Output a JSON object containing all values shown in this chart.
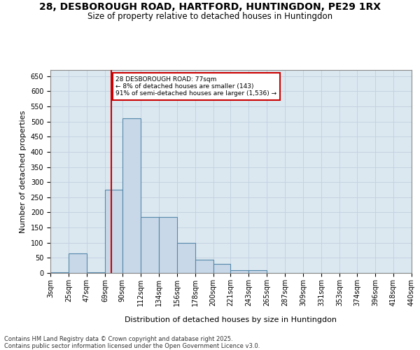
{
  "title_line1": "28, DESBOROUGH ROAD, HARTFORD, HUNTINGDON, PE29 1RX",
  "title_line2": "Size of property relative to detached houses in Huntingdon",
  "xlabel": "Distribution of detached houses by size in Huntingdon",
  "ylabel": "Number of detached properties",
  "bar_color": "#c8d8e8",
  "bar_edge_color": "#5588aa",
  "grid_color": "#c0d0e0",
  "background_color": "#dce8f0",
  "vline_color": "#cc0000",
  "vline_x": 77,
  "annotation_text": "28 DESBOROUGH ROAD: 77sqm\n← 8% of detached houses are smaller (143)\n91% of semi-detached houses are larger (1,536) →",
  "annotation_box_color": "#cc0000",
  "bins": [
    3,
    25,
    47,
    69,
    90,
    112,
    134,
    156,
    178,
    200,
    221,
    243,
    265,
    287,
    309,
    331,
    353,
    374,
    396,
    418,
    440
  ],
  "bin_labels": [
    "3sqm",
    "25sqm",
    "47sqm",
    "69sqm",
    "90sqm",
    "112sqm",
    "134sqm",
    "156sqm",
    "178sqm",
    "200sqm",
    "221sqm",
    "243sqm",
    "265sqm",
    "287sqm",
    "309sqm",
    "331sqm",
    "353sqm",
    "374sqm",
    "396sqm",
    "418sqm",
    "440sqm"
  ],
  "counts": [
    3,
    65,
    3,
    275,
    510,
    185,
    185,
    100,
    45,
    30,
    10,
    10,
    0,
    0,
    0,
    0,
    0,
    0,
    0,
    0
  ],
  "ylim": [
    0,
    670
  ],
  "yticks": [
    0,
    50,
    100,
    150,
    200,
    250,
    300,
    350,
    400,
    450,
    500,
    550,
    600,
    650
  ],
  "footnote": "Contains HM Land Registry data © Crown copyright and database right 2025.\nContains public sector information licensed under the Open Government Licence v3.0.",
  "title_fontsize": 10,
  "subtitle_fontsize": 8.5,
  "label_fontsize": 8,
  "tick_fontsize": 7,
  "footnote_fontsize": 6,
  "fig_width": 6.0,
  "fig_height": 5.0,
  "fig_dpi": 100
}
